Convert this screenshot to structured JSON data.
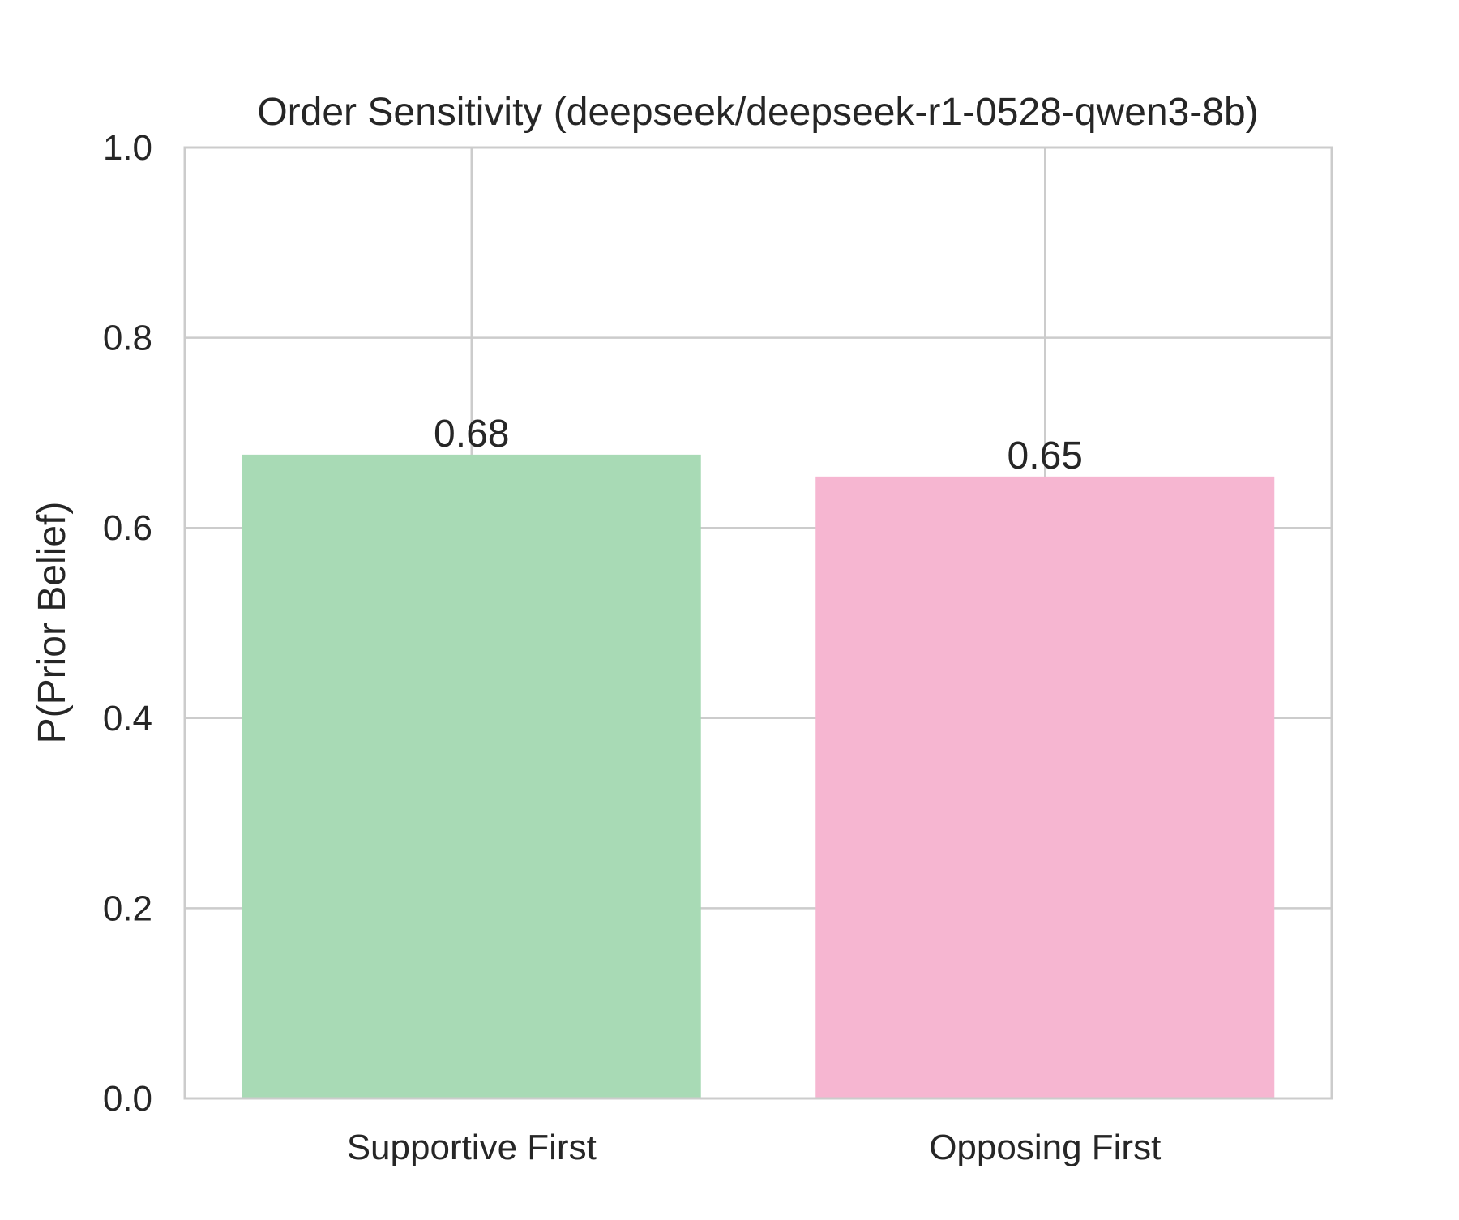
{
  "chart_data": {
    "type": "bar",
    "title": "Order Sensitivity (deepseek/deepseek-r1-0528-qwen3-8b)",
    "xlabel": "",
    "ylabel": "P(Prior Belief)",
    "categories": [
      "Supportive First",
      "Opposing First"
    ],
    "values": [
      0.677,
      0.654
    ],
    "value_labels": [
      "0.68",
      "0.65"
    ],
    "colors": [
      "#a8dab5",
      "#f6b6d1"
    ],
    "ylim": [
      0,
      1.0
    ],
    "yticks": [
      0.0,
      0.2,
      0.4,
      0.6,
      0.8,
      1.0
    ],
    "ytick_labels": [
      "0.0",
      "0.2",
      "0.4",
      "0.6",
      "0.8",
      "1.0"
    ],
    "grid": true,
    "grid_color": "#cccccc",
    "text_color": "#262626"
  }
}
